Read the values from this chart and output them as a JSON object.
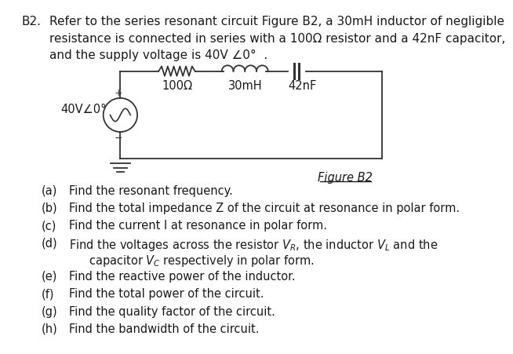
{
  "title_label": "B2.",
  "title_text": "Refer to the series resonant circuit Figure B2, a 30mH inductor of negligible\nresistance is connected in series with a 100Ω resistor and a 42nF capacitor,\nand the supply voltage is 40V ∠0°  .",
  "voltage_label": "40V∠0°",
  "resistor_label": "100Ω",
  "inductor_label": "30mH",
  "capacitor_label": "42nF",
  "figure_label": "Figure B2",
  "q_labels": [
    "(a)",
    "(b)",
    "(c)",
    "(d)",
    "(e)",
    "(f)",
    "(g)",
    "(h)"
  ],
  "q_texts": [
    "Find the resonant frequency.",
    "Find the total impedance Z of the circuit at resonance in polar form.",
    "Find the current I at resonance in polar form.",
    "Find the voltages across the resistor $V_R$, the inductor $V_L$ and the\ncapacitor $V_C$ respectively in polar form.",
    "Find the reactive power of the inductor.",
    "Find the total power of the circuit.",
    "Find the quality factor of the circuit.",
    "Find the bandwidth of the circuit."
  ],
  "bg_color": "#ffffff",
  "text_color": "#1a1a1a",
  "circuit_color": "#333333"
}
